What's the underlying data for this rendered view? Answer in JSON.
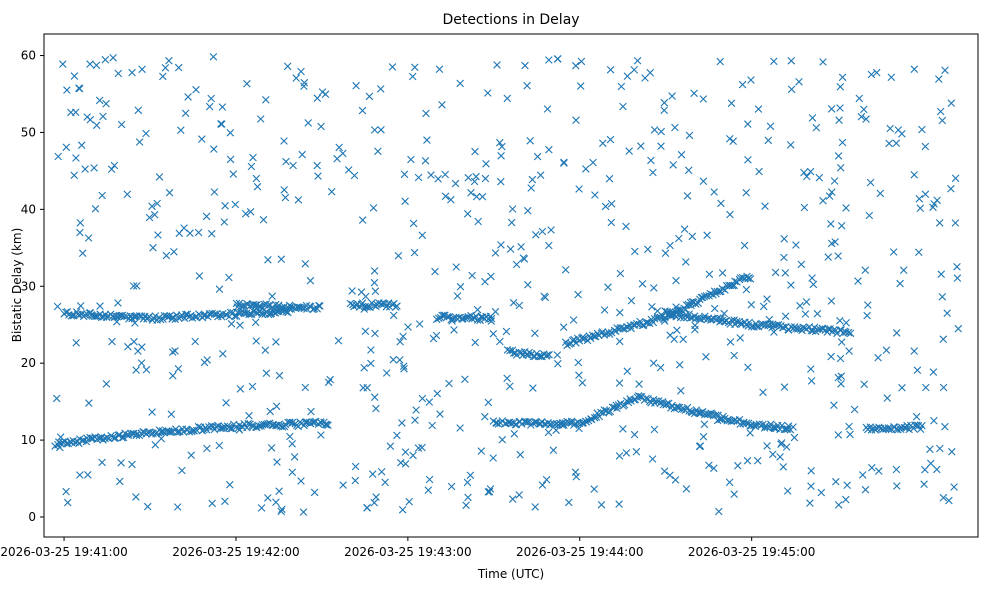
{
  "chart_data": {
    "type": "scatter",
    "title": "Detections in Delay",
    "xlabel": "Time (UTC)",
    "ylabel": "Bistatic Delay (km)",
    "marker": "x",
    "color": "#1f77b4",
    "grid": false,
    "legend": "none",
    "xlim_seconds_after_19_40_00": [
      53,
      379
    ],
    "ylim": [
      -2.6,
      62.8
    ],
    "x_ticks": [
      {
        "value": "2026-03-25 19:41:00",
        "label": "2026-03-25 19:41:00"
      },
      {
        "value": "2026-03-25 19:42:00",
        "label": "2026-03-25 19:42:00"
      },
      {
        "value": "2026-03-25 19:43:00",
        "label": "2026-03-25 19:43:00"
      },
      {
        "value": "2026-03-25 19:44:00",
        "label": "2026-03-25 19:44:00"
      },
      {
        "value": "2026-03-25 19:45:00",
        "label": "2026-03-25 19:45:00"
      }
    ],
    "y_ticks": [
      0,
      10,
      20,
      30,
      40,
      50,
      60
    ],
    "tracks": [
      {
        "x": [
          "19:40:57",
          "19:41:30",
          "19:42:00",
          "19:42:33"
        ],
        "y": [
          9.5,
          11.0,
          11.8,
          12.2
        ]
      },
      {
        "x": [
          "19:43:30",
          "19:44:00",
          "19:44:20",
          "19:45:00",
          "19:45:15"
        ],
        "y": [
          12.3,
          12.2,
          15.5,
          12.0,
          11.5
        ]
      },
      {
        "x": [
          "19:45:40",
          "19:46:00"
        ],
        "y": [
          11.5,
          11.7
        ]
      },
      {
        "x": [
          "19:41:00",
          "19:41:30",
          "19:42:20"
        ],
        "y": [
          26.5,
          25.8,
          26.8
        ]
      },
      {
        "x": [
          "19:42:00",
          "19:42:30"
        ],
        "y": [
          27.5,
          27.2
        ]
      },
      {
        "x": [
          "19:42:40",
          "19:42:57"
        ],
        "y": [
          27.5,
          27.6
        ]
      },
      {
        "x": [
          "19:43:10",
          "19:43:30"
        ],
        "y": [
          26.0,
          25.8
        ]
      },
      {
        "x": [
          "19:43:55",
          "19:44:30",
          "19:45:00"
        ],
        "y": [
          22.5,
          26.0,
          31.5
        ]
      },
      {
        "x": [
          "19:44:30",
          "19:45:00",
          "19:45:35"
        ],
        "y": [
          26.5,
          25.0,
          24.0
        ]
      },
      {
        "x": [
          "19:43:35",
          "19:43:50"
        ],
        "y": [
          21.5,
          20.8
        ]
      }
    ]
  }
}
